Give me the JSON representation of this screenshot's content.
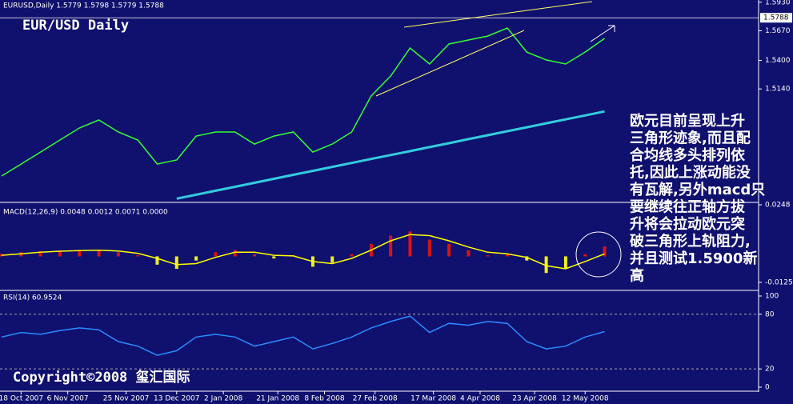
{
  "chart_data": [
    {
      "type": "line",
      "info": "EURUSD,Daily  1.5779 1.5798 1.5779 1.5788",
      "title": "EUR/USD Daily",
      "x": [
        0,
        5,
        10,
        15,
        20,
        25,
        30,
        35,
        40,
        45,
        50,
        55,
        60,
        65,
        70,
        75,
        80,
        85,
        90,
        95,
        100,
        105,
        110,
        115,
        120,
        125,
        130,
        135,
        140,
        145,
        150,
        155
      ],
      "xlim": [
        0,
        195
      ],
      "series": [
        {
          "color": "#33ff33",
          "values": [
            1.4347,
            1.4456,
            1.4565,
            1.4675,
            1.4784,
            1.4857,
            1.4748,
            1.4675,
            1.4456,
            1.4493,
            1.4711,
            1.4748,
            1.4748,
            1.4638,
            1.4711,
            1.4748,
            1.4565,
            1.4638,
            1.4748,
            1.5076,
            1.5258,
            1.5513,
            1.5367,
            1.5549,
            1.5586,
            1.5622,
            1.5695,
            1.5476,
            1.5404,
            1.5367,
            1.5476,
            1.56
          ]
        },
        {
          "color": "#33ccdd",
          "values": [
            null,
            null,
            null,
            null,
            null,
            null,
            null,
            null,
            null,
            1.4141,
            1.4177,
            1.4213,
            1.4249,
            1.4285,
            1.4322,
            1.4358,
            1.4394,
            1.443,
            1.4466,
            1.4502,
            1.4538,
            1.4574,
            1.461,
            1.4646,
            1.4683,
            1.4719,
            1.4755,
            1.4791,
            1.4827,
            1.4863,
            1.4899,
            1.4935
          ]
        }
      ],
      "ylim": [
        1.4114,
        1.595
      ],
      "yticks": [
        {
          "value": 1.593,
          "label": "1.5930"
        },
        {
          "value": 1.567,
          "label": "1.5670"
        },
        {
          "value": 1.54,
          "label": "1.5400"
        },
        {
          "value": 1.514,
          "label": "1.5140"
        }
      ],
      "last_price": 1.5788,
      "grid": false,
      "annotation": [
        "欧元目前呈现上升",
        "三角形迹象,而且配",
        "合均线多头排列依",
        "托,因此上涨动能没",
        "有瓦解,另外macd只",
        "要继续往正轴方拔",
        "升将会拉动欧元突",
        "破三角形上轨阻力,",
        "并且测试1.5900新",
        "高"
      ]
    },
    {
      "type": "bar",
      "title": "MACD(12,26,9) 0.0048 0.0012 0.0071 0.0000",
      "values": [
        0.0012,
        0.002,
        0.0025,
        0.0028,
        0.003,
        0.0032,
        0.002,
        0.0005,
        -0.004,
        -0.006,
        -0.002,
        0.002,
        0.003,
        0.001,
        -0.001,
        0.0005,
        -0.005,
        -0.003,
        0.001,
        0.006,
        0.01,
        0.012,
        0.008,
        0.006,
        0.003,
        0.0005,
        0.001,
        -0.002,
        -0.008,
        -0.006,
        0.001,
        0.0048
      ],
      "up_color": "#dd1111",
      "down_color": "#eeee22",
      "series": [
        {
          "color": "#ffff00",
          "values": [
            0.0005,
            0.0012,
            0.002,
            0.0025,
            0.0028,
            0.003,
            0.0026,
            0.0015,
            -0.001,
            -0.004,
            -0.0035,
            -0.0005,
            0.002,
            0.002,
            0.0005,
            0.0002,
            -0.0025,
            -0.0035,
            -0.001,
            0.003,
            0.0075,
            0.0105,
            0.01,
            0.0075,
            0.0045,
            0.002,
            0.0012,
            -0.0005,
            -0.0045,
            -0.006,
            -0.0025,
            0.0012
          ]
        }
      ],
      "ylim": [
        -0.016,
        0.0252
      ],
      "yticks": [
        0.0248,
        -0.0125
      ],
      "grid": false
    },
    {
      "type": "line",
      "title": "RSI(14) 60.9524",
      "series": [
        {
          "color": "#2a8cff",
          "values": [
            55,
            60,
            58,
            62,
            65,
            63,
            50,
            45,
            35,
            40,
            55,
            58,
            55,
            45,
            50,
            55,
            42,
            48,
            55,
            65,
            72,
            78,
            60,
            70,
            68,
            72,
            70,
            50,
            42,
            45,
            55,
            61
          ]
        }
      ],
      "ylim": [
        -5.3,
        104.4
      ],
      "yticks": [
        100,
        80,
        20,
        0
      ],
      "grid": true,
      "xticks": [
        {
          "value": 5,
          "label": "18 Oct 2007"
        },
        {
          "value": 17,
          "label": "6 Nov 2007"
        },
        {
          "value": 32,
          "label": "25 Nov 2007"
        },
        {
          "value": 45,
          "label": "13 Dec 2007"
        },
        {
          "value": 57,
          "label": "2 Jan 2008"
        },
        {
          "value": 71,
          "label": "21 Jan 2008"
        },
        {
          "value": 83,
          "label": "8 Feb 2008"
        },
        {
          "value": 96,
          "label": "27 Feb 2008"
        },
        {
          "value": 111,
          "label": "17 Mar 2008"
        },
        {
          "value": 123,
          "label": "4 Apr 2008"
        },
        {
          "value": 137,
          "label": "23 Apr 2008"
        },
        {
          "value": 150,
          "label": "12 May 2008"
        }
      ]
    }
  ],
  "copyright": "Copyright©2008 玺汇国际"
}
